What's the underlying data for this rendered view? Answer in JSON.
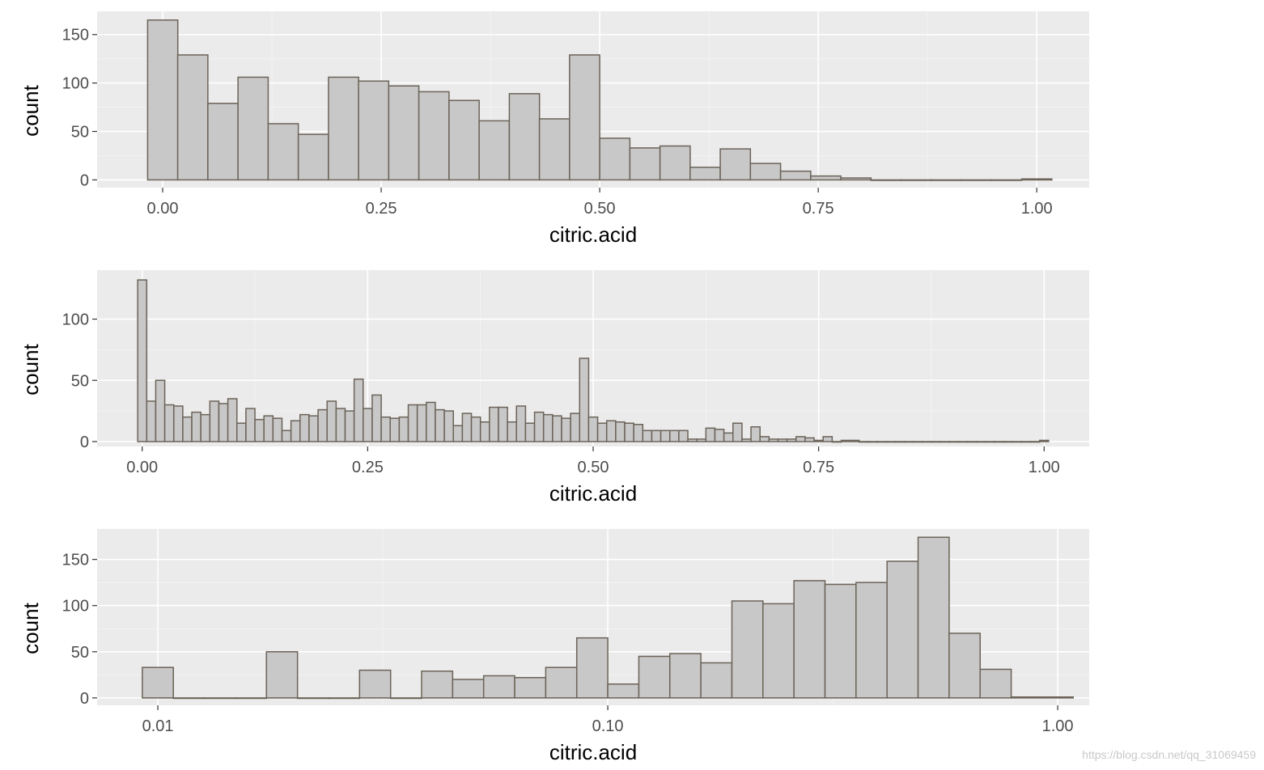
{
  "chart_data": [
    {
      "type": "bar",
      "subtype": "histogram",
      "xlabel": "citric.acid",
      "ylabel": "count",
      "xscale": "linear",
      "xlim": [
        -0.075,
        1.06
      ],
      "ylim": [
        -8,
        174
      ],
      "x_ticks": [
        0.0,
        0.25,
        0.5,
        0.75,
        1.0
      ],
      "x_tick_labels": [
        "0.00",
        "0.25",
        "0.50",
        "0.75",
        "1.00"
      ],
      "y_ticks": [
        0,
        50,
        100,
        150
      ],
      "y_tick_labels": [
        "0",
        "50",
        "100",
        "150"
      ],
      "grid": true,
      "bins_left": [
        -0.0172,
        0.0172,
        0.0517,
        0.0862,
        0.1207,
        0.1552,
        0.1897,
        0.2241,
        0.2586,
        0.2931,
        0.3276,
        0.3621,
        0.3966,
        0.431,
        0.4655,
        0.5,
        0.5345,
        0.569,
        0.6034,
        0.6379,
        0.6724,
        0.7069,
        0.7414,
        0.7759,
        0.8103,
        0.8448,
        0.8793,
        0.9138,
        0.9483,
        0.9828
      ],
      "bin_width": 0.0345,
      "values": [
        165,
        129,
        79,
        106,
        58,
        47,
        106,
        102,
        97,
        91,
        82,
        61,
        89,
        63,
        129,
        43,
        33,
        35,
        13,
        32,
        17,
        9,
        4,
        2,
        0,
        0,
        0,
        0,
        0,
        1
      ]
    },
    {
      "type": "bar",
      "subtype": "histogram",
      "xlabel": "citric.acid",
      "ylabel": "count",
      "xscale": "linear",
      "xlim": [
        -0.05,
        1.05
      ],
      "ylim": [
        -4,
        140
      ],
      "x_ticks": [
        0.0,
        0.25,
        0.5,
        0.75,
        1.0
      ],
      "x_tick_labels": [
        "0.00",
        "0.25",
        "0.50",
        "0.75",
        "1.00"
      ],
      "y_ticks": [
        0,
        50,
        100
      ],
      "y_tick_labels": [
        "0",
        "50",
        "100"
      ],
      "grid": true,
      "bin_width": 0.01,
      "bin_centers_start": 0.0,
      "values": [
        132,
        33,
        50,
        30,
        29,
        20,
        24,
        22,
        33,
        31,
        35,
        15,
        27,
        18,
        21,
        19,
        9,
        17,
        22,
        21,
        26,
        33,
        27,
        25,
        51,
        27,
        38,
        20,
        19,
        20,
        30,
        30,
        32,
        26,
        25,
        13,
        23,
        20,
        16,
        28,
        28,
        16,
        29,
        15,
        24,
        22,
        21,
        19,
        23,
        68,
        20,
        15,
        17,
        16,
        15,
        14,
        9,
        9,
        9,
        9,
        9,
        2,
        2,
        11,
        10,
        7,
        15,
        2,
        12,
        4,
        2,
        2,
        2,
        4,
        3,
        1,
        4,
        0,
        1,
        1,
        0,
        0,
        0,
        0,
        0,
        0,
        0,
        0,
        0,
        0,
        0,
        0,
        0,
        0,
        0,
        0,
        0,
        0,
        0,
        0,
        1
      ]
    },
    {
      "type": "bar",
      "subtype": "histogram",
      "xlabel": "citric.acid",
      "ylabel": "count",
      "xscale": "log10",
      "xlim_log10": [
        -2.135,
        0.07
      ],
      "ylim": [
        -8,
        183
      ],
      "x_ticks": [
        0.01,
        0.1,
        1.0
      ],
      "x_tick_labels": [
        "0.01",
        "0.10",
        "1.00"
      ],
      "y_ticks": [
        0,
        50,
        100,
        150
      ],
      "y_tick_labels": [
        "0",
        "50",
        "100",
        "150"
      ],
      "grid": true,
      "bins_left_log10": [
        -2.0345,
        -1.9655,
        -1.8966,
        -1.8276,
        -1.7586,
        -1.6897,
        -1.6207,
        -1.5517,
        -1.4828,
        -1.4138,
        -1.3448,
        -1.2759,
        -1.2069,
        -1.1379,
        -1.069,
        -1.0,
        -0.931,
        -0.8621,
        -0.7931,
        -0.7241,
        -0.6552,
        -0.5862,
        -0.5172,
        -0.4483,
        -0.3793,
        -0.3103,
        -0.2414,
        -0.1724,
        -0.1034,
        -0.0345
      ],
      "bin_width_log10": 0.069,
      "values": [
        33,
        0,
        0,
        0,
        50,
        0,
        0,
        30,
        0,
        29,
        20,
        24,
        22,
        33,
        65,
        15,
        45,
        48,
        38,
        105,
        102,
        127,
        123,
        125,
        148,
        174,
        70,
        31,
        1,
        1
      ]
    }
  ],
  "watermark": "https://blog.csdn.net/qq_31069459"
}
